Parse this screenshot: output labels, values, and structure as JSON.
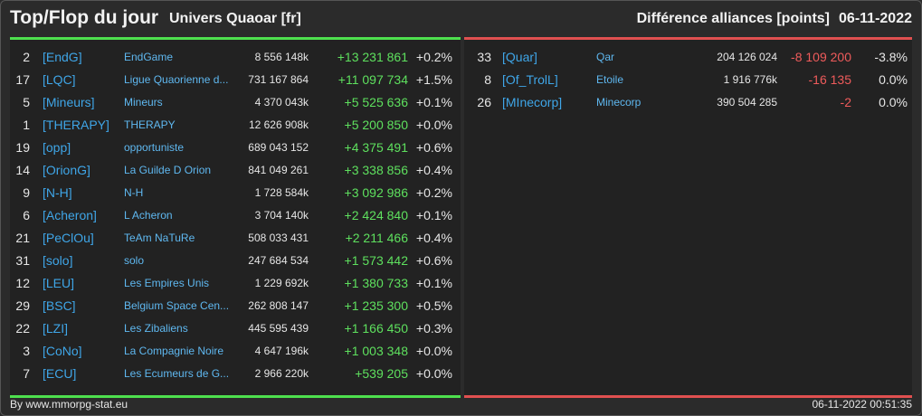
{
  "header": {
    "title": "Top/Flop du jour",
    "subtitle": "Univers Quaoar [fr]",
    "right_title": "Différence alliances [points]",
    "date": "06-11-2022"
  },
  "colors": {
    "gain": "#5ee05e",
    "loss": "#ef5b5b",
    "tag": "#3fa6e8",
    "top_border": "#4ee04e",
    "flop_border": "#e05050"
  },
  "top": [
    {
      "rank": "2",
      "tag": "[EndG]",
      "name": "EndGame",
      "points": "8 556 148k",
      "diff": "+13 231 861",
      "pct": "+0.2%"
    },
    {
      "rank": "17",
      "tag": "[LQC]",
      "name": "Ligue Quaorienne d...",
      "points": "731 167 864",
      "diff": "+11 097 734",
      "pct": "+1.5%"
    },
    {
      "rank": "5",
      "tag": "[Mineurs]",
      "name": "Mineurs",
      "points": "4 370 043k",
      "diff": "+5 525 636",
      "pct": "+0.1%"
    },
    {
      "rank": "1",
      "tag": "[THERAPY]",
      "name": "THERAPY",
      "points": "12 626 908k",
      "diff": "+5 200 850",
      "pct": "+0.0%"
    },
    {
      "rank": "19",
      "tag": "[opp]",
      "name": "opportuniste",
      "points": "689 043 152",
      "diff": "+4 375 491",
      "pct": "+0.6%"
    },
    {
      "rank": "14",
      "tag": "[OrionG]",
      "name": "La Guilde D Orion",
      "points": "841 049 261",
      "diff": "+3 338 856",
      "pct": "+0.4%"
    },
    {
      "rank": "9",
      "tag": "[N-H]",
      "name": "N-H",
      "points": "1 728 584k",
      "diff": "+3 092 986",
      "pct": "+0.2%"
    },
    {
      "rank": "6",
      "tag": "[Acheron]",
      "name": "L Acheron",
      "points": "3 704 140k",
      "diff": "+2 424 840",
      "pct": "+0.1%"
    },
    {
      "rank": "21",
      "tag": "[PeClOu]",
      "name": "TeAm NaTuRe",
      "points": "508 033 431",
      "diff": "+2 211 466",
      "pct": "+0.4%"
    },
    {
      "rank": "31",
      "tag": "[solo]",
      "name": "solo",
      "points": "247 684 534",
      "diff": "+1 573 442",
      "pct": "+0.6%"
    },
    {
      "rank": "12",
      "tag": "[LEU]",
      "name": "Les Empires Unis",
      "points": "1 229 692k",
      "diff": "+1 380 733",
      "pct": "+0.1%"
    },
    {
      "rank": "29",
      "tag": "[BSC]",
      "name": "Belgium Space Cen...",
      "points": "262 808 147",
      "diff": "+1 235 300",
      "pct": "+0.5%"
    },
    {
      "rank": "22",
      "tag": "[LZI]",
      "name": "Les Zibaliens",
      "points": "445 595 439",
      "diff": "+1 166 450",
      "pct": "+0.3%"
    },
    {
      "rank": "3",
      "tag": "[CoNo]",
      "name": "La Compagnie Noire",
      "points": "4 647 196k",
      "diff": "+1 003 348",
      "pct": "+0.0%"
    },
    {
      "rank": "7",
      "tag": "[ECU]",
      "name": "Les Ecumeurs de G...",
      "points": "2 966 220k",
      "diff": "+539 205",
      "pct": "+0.0%"
    }
  ],
  "flop": [
    {
      "rank": "33",
      "tag": "[Quar]",
      "name": "Qar",
      "points": "204 126 024",
      "diff": "-8 109 200",
      "pct": "-3.8%"
    },
    {
      "rank": "8",
      "tag": "[Of_TrolL]",
      "name": "Etoile",
      "points": "1 916 776k",
      "diff": "-16 135",
      "pct": "0.0%"
    },
    {
      "rank": "26",
      "tag": "[MInecorp]",
      "name": "Minecorp",
      "points": "390 504 285",
      "diff": "-2",
      "pct": "0.0%"
    }
  ],
  "footer": {
    "source": "By www.mmorpg-stat.eu",
    "timestamp": "06-11-2022 00:51:35"
  }
}
